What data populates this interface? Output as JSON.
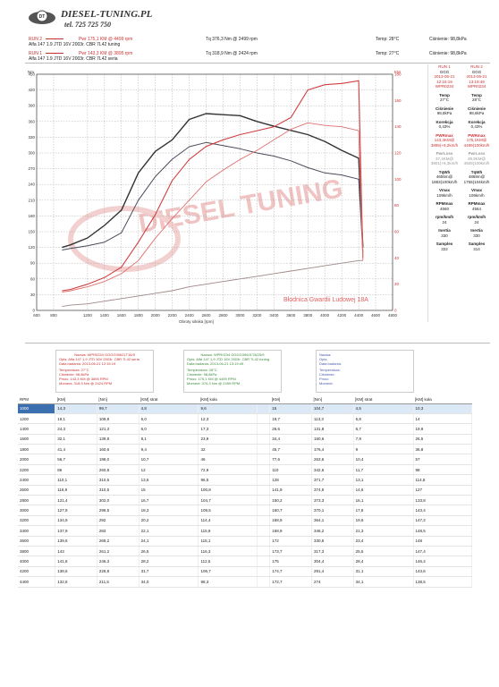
{
  "header": {
    "brand": "DIESEL-TUNING.PL",
    "phone": "tel. 725 725 750",
    "logo_icon": "car-gear-logo-icon",
    "runs": [
      {
        "tag": "RUN 2",
        "car": "Alfa 147 1.9 JTD 16V 2003r. CBR 7L42 tuning",
        "pmax": "Pwr 175,1 KM @ 4499 rpm",
        "tmax": "Tq 376,3 Nm @ 2499 rpm",
        "temp": "Temp: 28°C",
        "press": "Ciśnienie: 98,8kPa",
        "color": "#c83030"
      },
      {
        "tag": "RUN 1",
        "car": "Alfa 147 1.9 JTD 16V 2003r. CBR 7L42 seria",
        "pmax": "Pwr 143,3 KM @ 3895 rpm",
        "tmax": "Tq 318,9 Nm @ 2424 rpm",
        "temp": "Temp: 27°C",
        "press": "Ciśnienie: 98,8kPa",
        "color": "#c83030"
      }
    ]
  },
  "chart_data": {
    "type": "line",
    "xlabel": "Obroty silnika [rpm]",
    "ylabel_left": "Nm",
    "ylabel_right": "KM",
    "x_ticks": [
      600,
      800,
      1200,
      1400,
      1600,
      1800,
      2000,
      2200,
      2400,
      2600,
      2800,
      3000,
      3200,
      3400,
      3600,
      3800,
      4000,
      4200,
      4400,
      4600,
      4800
    ],
    "xlim": [
      600,
      4800
    ],
    "ylim_left": [
      0,
      450
    ],
    "ylim_right": [
      0,
      180
    ],
    "left_ticks": [
      0,
      30,
      60,
      90,
      120,
      150,
      180,
      210,
      240,
      270,
      300,
      330,
      360,
      390,
      420,
      450
    ],
    "right_ticks": [
      0,
      20,
      40,
      60,
      80,
      100,
      120,
      140,
      160,
      180
    ],
    "watermark": "DIESEL TUNING",
    "address": "Błodnica Gwardii Ludowej 18A",
    "grid": true,
    "series": [
      {
        "color": "#333333",
        "axis": "left",
        "width": 1.4,
        "x": [
          900,
          1000,
          1200,
          1400,
          1600,
          1800,
          2000,
          2200,
          2400,
          2600,
          2800,
          3000,
          3200,
          3400,
          3600,
          3800,
          4000,
          4200,
          4400,
          4450
        ],
        "y": [
          120,
          125,
          138,
          162,
          191,
          262,
          303,
          325,
          364,
          375,
          373,
          371,
          360,
          351,
          343,
          335,
          322,
          305,
          290,
          120
        ]
      },
      {
        "color": "#4a4a5a",
        "axis": "left",
        "width": 1.0,
        "x": [
          900,
          1000,
          1200,
          1400,
          1600,
          1800,
          2000,
          2200,
          2400,
          2600,
          2800,
          3000,
          3200,
          3400,
          3600,
          3800,
          4000,
          4200,
          4400,
          4450
        ],
        "y": [
          115,
          118,
          123,
          130,
          148,
          210,
          255,
          288,
          312,
          320,
          314,
          308,
          300,
          294,
          285,
          272,
          262,
          258,
          250,
          110
        ]
      },
      {
        "color": "#d04040",
        "axis": "right",
        "width": 1.1,
        "x": [
          900,
          1000,
          1200,
          1400,
          1600,
          1800,
          2000,
          2200,
          2400,
          2600,
          2800,
          3000,
          3200,
          3400,
          3600,
          3800,
          4000,
          4200,
          4400,
          4450
        ],
        "y": [
          15,
          16,
          20,
          25,
          33,
          52,
          73,
          99,
          115,
          125,
          130,
          134,
          137,
          140,
          147,
          168,
          172,
          173,
          175,
          40
        ]
      },
      {
        "color": "#e07070",
        "axis": "right",
        "width": 0.9,
        "x": [
          900,
          1000,
          1200,
          1400,
          1600,
          1800,
          2000,
          2200,
          2400,
          2600,
          2800,
          3000,
          3200,
          3400,
          3600,
          3800,
          4000,
          4200,
          4400,
          4450
        ],
        "y": [
          14,
          15,
          18,
          22,
          28,
          38,
          55,
          70,
          84,
          98,
          107,
          115,
          122,
          130,
          138,
          143,
          141,
          140,
          137,
          38
        ]
      },
      {
        "color": "#a08888",
        "axis": "right",
        "width": 0.9,
        "x": [
          900,
          1000,
          1200,
          1400,
          1600,
          1800,
          2000,
          2200,
          2400,
          2600,
          2800,
          3000,
          3200,
          3400,
          3600,
          3800,
          4000,
          4200,
          4400,
          4450
        ],
        "y": [
          3,
          4,
          5,
          7,
          9,
          11,
          13,
          15,
          18,
          20,
          22,
          24,
          26,
          28,
          30,
          32,
          34,
          36,
          38,
          38
        ]
      }
    ]
  },
  "side": {
    "cols": [
      {
        "head": "RUN 1",
        "sub": "GGG",
        "date": "2013-06-21 12:15:19",
        "id": "WPR0234",
        "temp_lbl": "Temp",
        "temp": "27°C",
        "press_lbl": "Ciśnienie",
        "press": "98,8kPa",
        "kor_lbl": "Korekcja",
        "kor": "0,43%",
        "pmax_lbl": "PWRmax",
        "pmax": "143,3KM@",
        "pmax2": "3895(+9,2km/h",
        "pw_lbl": "PwrLoss",
        "pw": "37,4KM@",
        "pw2": "3901(+9,3km/h",
        "tq_lbl": "TqWh",
        "tq": "4655m@",
        "tq2": "1883(100km/h",
        "vmax_lbl": "Vmax",
        "vmax": "109km/h",
        "rpm_lbl": "RPMmax",
        "rpm": "4560",
        "rk_lbl": "rpm/km/h",
        "rk": "24",
        "in_lbl": "Inertia",
        "in": "330",
        "sm_lbl": "Samples",
        "sm": "322"
      },
      {
        "head": "RUN 2",
        "sub": "GGG",
        "date": "2013-06-21 13:19:49",
        "id": "WPR0234",
        "temp_lbl": "Temp",
        "temp": "28°C",
        "press_lbl": "Ciśnienie",
        "press": "98,8kPa",
        "kor_lbl": "Korekcja",
        "kor": "0,43%",
        "pmax_lbl": "PWRmax",
        "pmax": "175,1KM@",
        "pmax2": "4499(100km/h",
        "pw_lbl": "PwrLoss",
        "pw": "39,9KM@",
        "pw2": "4509(100km/h",
        "tq_lbl": "TqWh",
        "tq": "4868m@",
        "tq2": "1755(104km/h",
        "vmax_lbl": "Vmax",
        "vmax": "109km/h",
        "rpm_lbl": "RPMmax",
        "rpm": "4564",
        "rk_lbl": "rpm/km/h",
        "rk": "24",
        "in_lbl": "Inertia",
        "in": "330",
        "sm_lbl": "Samples",
        "sm": "314"
      }
    ]
  },
  "boxes": [
    {
      "l1": "Nazwa: WPR0234 GGGG39621T16/9",
      "l2": "Opis: Alfa 147 1,9 JTD 16V 2003r. CBR 7L42 seria",
      "l3": "Data badania: 2013-06-21 12:15:19",
      "l4": "Temperatura: 27°C",
      "l5": "Ciśnienie: 98,8kPa",
      "l6": "Pmoc: 143,3 KM @ 3895 RPM",
      "l7": "Moment: 318,9 Nm @ 2424 RPM",
      "color": "#c83030"
    },
    {
      "l1": "Nazwa: WPR0234 GGGG39621T8/25/9",
      "l2": "Opis: Alfa 147 1,9 JTD 16V 2003r. CBR 7L42 tuning",
      "l3": "Data badania: 2013-06-21 13:19:49",
      "l4": "Temperatura: 28°C",
      "l5": "Ciśnienie: 98,8kPa",
      "l6": "Pmoc: 175,1 KM @ 4499 RPM",
      "l7": "Moment: 376,3 Nm @ 2499 RPM",
      "color": "#3a8a3a"
    },
    {
      "l1": "Nazwa:",
      "l2": "Opis:",
      "l3": "Data badania:",
      "l4": "Temperatura:",
      "l5": "Ciśnienie:",
      "l6": "Pmoc:",
      "l7": "Moment:",
      "color": "#4a5ab0"
    }
  ],
  "table": {
    "headers": [
      "RPM",
      "[KM]",
      "[Nm]",
      "[KM] strat",
      "[KM] koła",
      "",
      "[KM]",
      "[Nm]",
      "[KM] strat",
      "[KM] koła"
    ],
    "rows": [
      [
        "1000",
        "14,3",
        "99,7",
        "4,8",
        "9,6",
        "",
        "15",
        "104,7",
        "4,5",
        "10,3"
      ],
      [
        "1200",
        "19,1",
        "109,8",
        "5,0",
        "12,3",
        "",
        "19,7",
        "113,3",
        "5,8",
        "14"
      ],
      [
        "1400",
        "24,3",
        "121,3",
        "6,0",
        "17,3",
        "",
        "26,6",
        "131,8",
        "6,7",
        "19,9"
      ],
      [
        "1600",
        "32,1",
        "139,8",
        "8,1",
        "23,9",
        "",
        "34,4",
        "150,6",
        "7,9",
        "26,5"
      ],
      [
        "1800",
        "41,4",
        "160,6",
        "9,4",
        "32",
        "",
        "45,7",
        "176,4",
        "9",
        "36,8"
      ],
      [
        "2000",
        "56,7",
        "198,0",
        "10,7",
        "46",
        "",
        "77,6",
        "263,6",
        "10,4",
        "57"
      ],
      [
        "2200",
        "86",
        "260,8",
        "12",
        "72,9",
        "",
        "110",
        "342,6",
        "11,7",
        "98"
      ],
      [
        "2400",
        "110,1",
        "310,5",
        "13,6",
        "96,5",
        "",
        "128",
        "371,7",
        "13,1",
        "114,8"
      ],
      [
        "2600",
        "116,9",
        "310,5",
        "15",
        "100,8",
        "",
        "141,9",
        "374,9",
        "14,6",
        "127"
      ],
      [
        "2800",
        "121,4",
        "302,0",
        "16,7",
        "104,7",
        "",
        "150,2",
        "373,3",
        "16,1",
        "133,8"
      ],
      [
        "3000",
        "127,9",
        "298,5",
        "18,3",
        "109,5",
        "",
        "160,7",
        "370,1",
        "17,8",
        "143,4"
      ],
      [
        "3200",
        "134,9",
        "292",
        "20,2",
        "114,4",
        "",
        "168,9",
        "364,1",
        "19,6",
        "147,2"
      ],
      [
        "3400",
        "137,9",
        "283",
        "22,1",
        "115,9",
        "",
        "168,9",
        "346,2",
        "21,3",
        "148,5"
      ],
      [
        "3600",
        "139,6",
        "269,2",
        "24,1",
        "115,1",
        "",
        "172",
        "330,6",
        "23,4",
        "148"
      ],
      [
        "3800",
        "143",
        "261,2",
        "26,5",
        "116,3",
        "",
        "173,7",
        "317,3",
        "25,5",
        "147,4"
      ],
      [
        "4000",
        "141,8",
        "246,3",
        "28,2",
        "112,5",
        "",
        "175",
        "304,4",
        "28,4",
        "146,4"
      ],
      [
        "4200",
        "138,6",
        "228,8",
        "31,7",
        "106,7",
        "",
        "174,7",
        "291,4",
        "31,1",
        "143,6"
      ],
      [
        "4400",
        "132,8",
        "211,5",
        "34,0",
        "98,3",
        "",
        "172,7",
        "274",
        "34,1",
        "138,5"
      ]
    ]
  }
}
